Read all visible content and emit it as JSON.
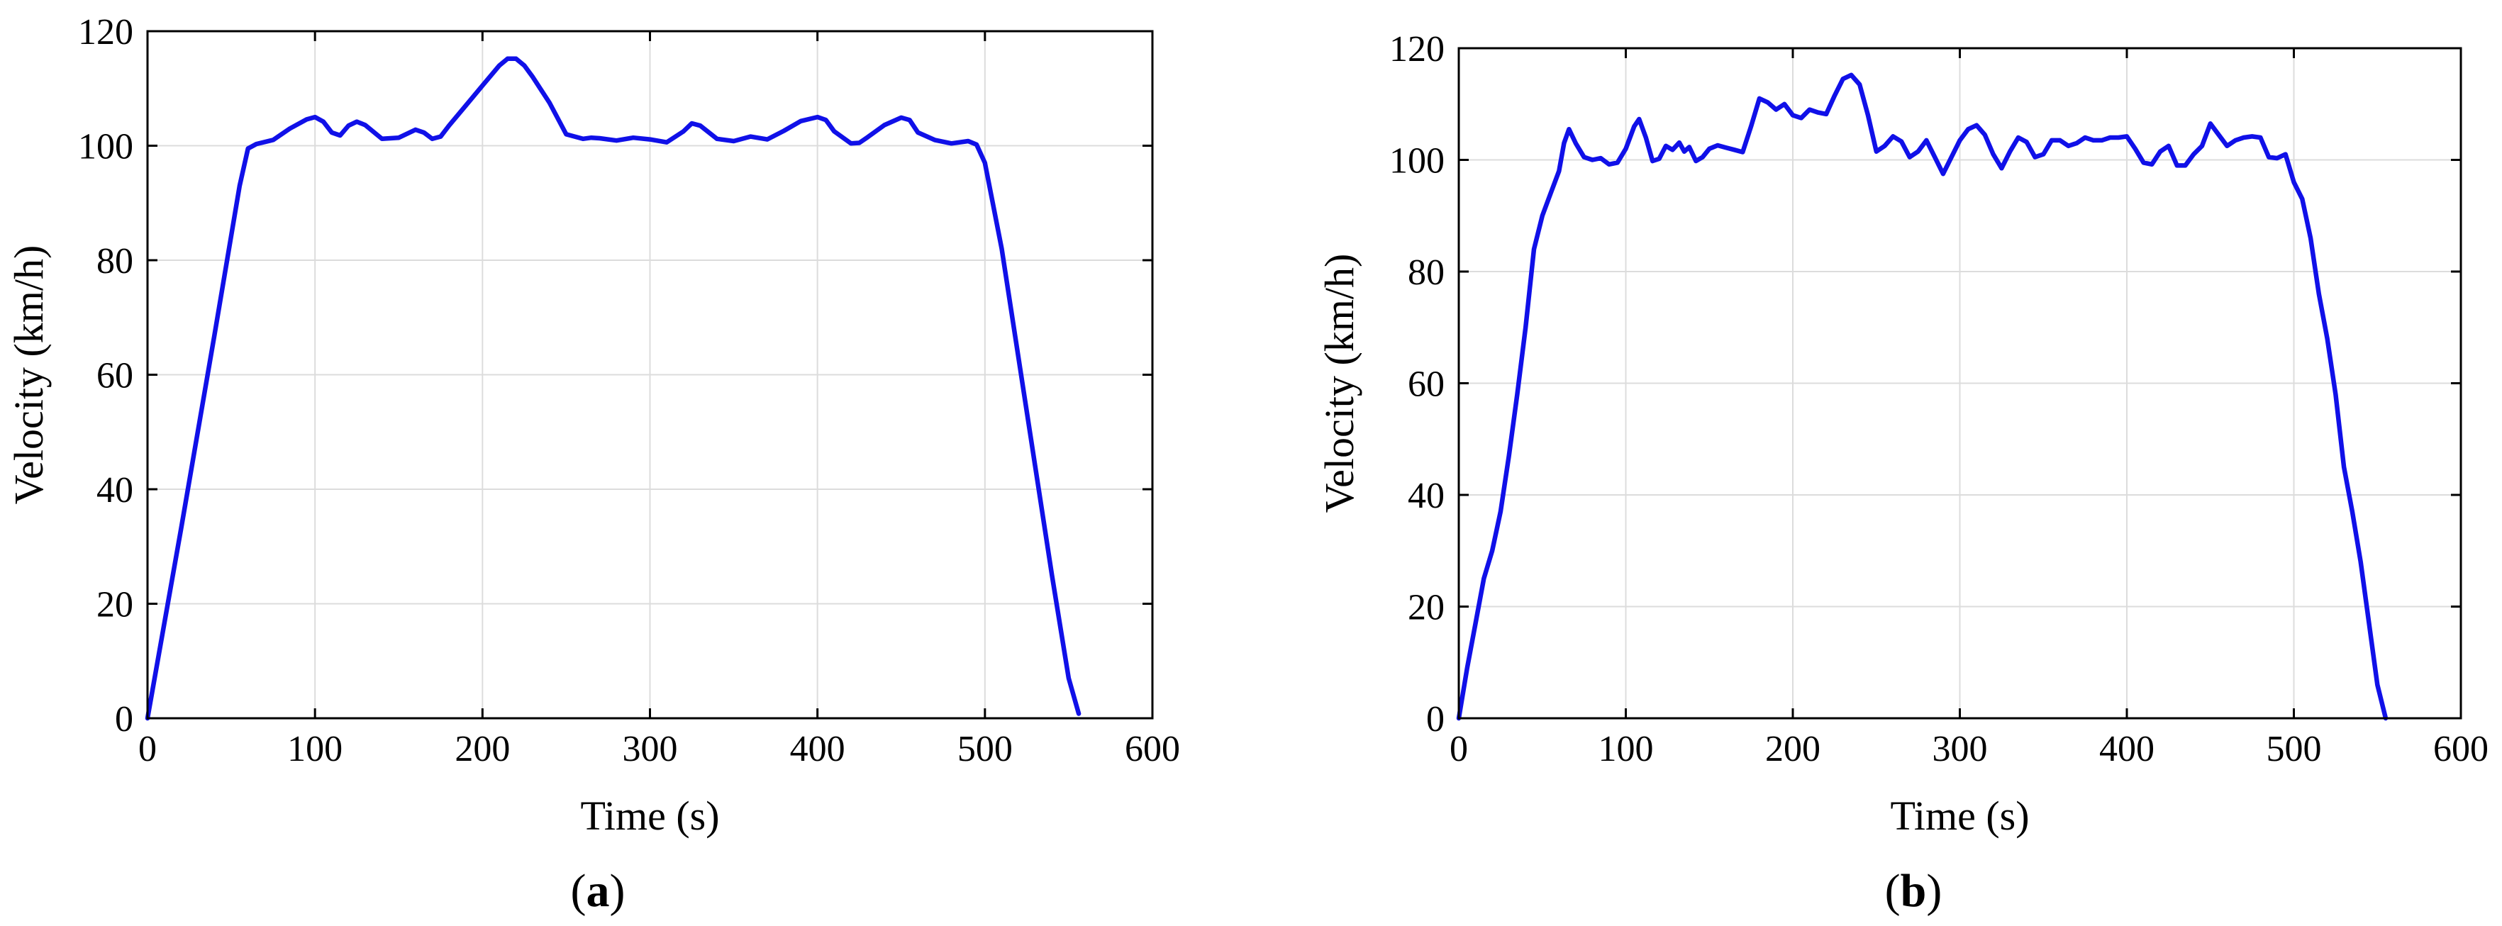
{
  "chart_data": [
    {
      "type": "line",
      "panel_label": "a",
      "xlabel": "Time (s)",
      "ylabel": "Velocity (km/h)",
      "xlim": [
        0,
        600
      ],
      "ylim": [
        0,
        120
      ],
      "x_ticks": [
        0,
        100,
        200,
        300,
        400,
        500,
        600
      ],
      "y_ticks": [
        0,
        20,
        40,
        60,
        80,
        100,
        120
      ],
      "grid": true,
      "line_color": "#1010e8",
      "series": [
        {
          "x": [
            0,
            20,
            40,
            55,
            60,
            65,
            75,
            85,
            95,
            100,
            105,
            110,
            115,
            120,
            125,
            130,
            140,
            150,
            160,
            165,
            170,
            175,
            180,
            190,
            200,
            210,
            215,
            220,
            225,
            230,
            240,
            250,
            260,
            265,
            270,
            280,
            290,
            300,
            310,
            320,
            325,
            330,
            340,
            350,
            360,
            370,
            380,
            390,
            400,
            405,
            410,
            420,
            425,
            430,
            440,
            450,
            455,
            460,
            470,
            480,
            490,
            495,
            500,
            510,
            520,
            530,
            540,
            550,
            556
          ],
          "y": [
            0,
            33,
            67,
            93,
            99.5,
            100.3,
            101,
            103,
            104.6,
            105,
            104.2,
            102.3,
            101.8,
            103.5,
            104.2,
            103.6,
            101.2,
            101.4,
            102.8,
            102.3,
            101.2,
            101.6,
            103.5,
            107,
            110.5,
            114,
            115.2,
            115.2,
            114,
            112,
            107.5,
            102,
            101.2,
            101.4,
            101.3,
            100.9,
            101.4,
            101.1,
            100.6,
            102.5,
            103.9,
            103.5,
            101.2,
            100.8,
            101.6,
            101.1,
            102.6,
            104.3,
            105,
            104.5,
            102.5,
            100.4,
            100.5,
            101.5,
            103.6,
            104.9,
            104.5,
            102.3,
            101,
            100.4,
            100.8,
            100.2,
            97,
            82,
            63,
            44,
            25,
            7,
            0.8
          ]
        }
      ]
    },
    {
      "type": "line",
      "panel_label": "b",
      "xlabel": "Time (s)",
      "ylabel": "Velocity (km/h)",
      "xlim": [
        0,
        600
      ],
      "ylim": [
        0,
        120
      ],
      "x_ticks": [
        0,
        100,
        200,
        300,
        400,
        500,
        600
      ],
      "y_ticks": [
        0,
        20,
        40,
        60,
        80,
        100,
        120
      ],
      "grid": true,
      "line_color": "#1010e8",
      "series": [
        {
          "x": [
            0,
            5,
            10,
            15,
            20,
            25,
            30,
            35,
            40,
            45,
            50,
            55,
            60,
            63,
            66,
            70,
            75,
            80,
            85,
            90,
            95,
            100,
            105,
            108,
            112,
            116,
            120,
            124,
            128,
            132,
            135,
            138,
            142,
            146,
            150,
            155,
            160,
            165,
            170,
            175,
            180,
            185,
            190,
            195,
            200,
            205,
            210,
            215,
            220,
            225,
            230,
            235,
            240,
            245,
            250,
            255,
            260,
            265,
            270,
            275,
            280,
            285,
            290,
            295,
            300,
            305,
            310,
            315,
            320,
            325,
            330,
            335,
            340,
            345,
            350,
            355,
            360,
            365,
            370,
            375,
            380,
            385,
            390,
            395,
            400,
            405,
            410,
            415,
            420,
            425,
            430,
            435,
            440,
            445,
            450,
            455,
            460,
            465,
            470,
            475,
            480,
            485,
            490,
            495,
            500,
            505,
            510,
            515,
            520,
            525,
            530,
            535,
            540,
            545,
            550,
            555
          ],
          "y": [
            0,
            9,
            17,
            25,
            30,
            37,
            47,
            58,
            70,
            84,
            90,
            94,
            98,
            103,
            105.5,
            103,
            100.5,
            100,
            100.3,
            99.2,
            99.5,
            102,
            106,
            107.3,
            104,
            99.8,
            100.2,
            102.5,
            101.8,
            103.1,
            101.5,
            102.3,
            99.8,
            100.5,
            102,
            102.6,
            102.2,
            101.8,
            101.4,
            106,
            111,
            110.3,
            109,
            110,
            108,
            107.5,
            109,
            108.5,
            108.2,
            111.5,
            114.5,
            115.2,
            113.5,
            108,
            101.5,
            102.5,
            104.2,
            103.3,
            100.5,
            101.5,
            103.5,
            100.5,
            97.5,
            100.5,
            103.5,
            105.5,
            106.2,
            104.5,
            101,
            98.5,
            101.5,
            104,
            103.2,
            100.5,
            101,
            103.5,
            103.5,
            102.5,
            103,
            104,
            103.5,
            103.5,
            104,
            104,
            104.2,
            102,
            99.5,
            99.2,
            101.5,
            102.5,
            99,
            99,
            101,
            102.5,
            106.5,
            104.5,
            102.5,
            103.5,
            104,
            104.2,
            104,
            100.5,
            100.3,
            101,
            96,
            93,
            86,
            76,
            68,
            58,
            45,
            37,
            28,
            17,
            6,
            0
          ]
        }
      ]
    }
  ]
}
